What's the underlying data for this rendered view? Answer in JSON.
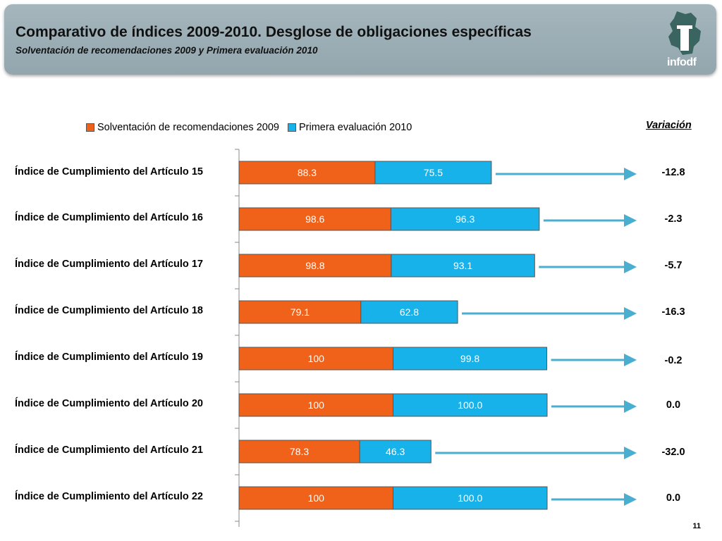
{
  "header": {
    "title": "Comparativo de índices 2009-2010. Desglose de obligaciones específicas",
    "subtitle": "Solventación de recomendaciones 2009 y Primera evaluación 2010",
    "logo_text": "infodf"
  },
  "colors": {
    "series_2009": "#f0621a",
    "series_2010": "#17b2ea",
    "arrow": "#4aaed0",
    "header_bg": "#9aadb4"
  },
  "variation_header": "Variación",
  "page_number": "11",
  "chart_data": {
    "type": "bar",
    "orientation": "horizontal",
    "stacked": true,
    "categories": [
      "Índice de Cumplimiento del Artículo 15",
      "Índice de Cumplimiento del Artículo 16",
      "Índice de Cumplimiento del Artículo 17",
      "Índice de Cumplimiento del Artículo 18",
      "Índice de Cumplimiento del Artículo 19",
      "Índice de Cumplimiento del Artículo 20",
      "Índice de Cumplimiento del Artículo 21",
      "Índice de Cumplimiento del Artículo 22"
    ],
    "series": [
      {
        "name": "Solventación de recomendaciones 2009",
        "values": [
          88.3,
          98.6,
          98.8,
          79.1,
          100,
          100,
          78.3,
          100
        ],
        "labels": [
          "88.3",
          "98.6",
          "98.8",
          "79.1",
          "100",
          "100",
          "78.3",
          "100"
        ]
      },
      {
        "name": "Primera evaluación 2010",
        "values": [
          75.5,
          96.3,
          93.1,
          62.8,
          99.8,
          100.0,
          46.3,
          100.0
        ],
        "labels": [
          "75.5",
          "96.3",
          "93.1",
          "62.8",
          "99.8",
          "100.0",
          "46.3",
          "100.0"
        ]
      }
    ],
    "variation": [
      "-12.8",
      "-2.3",
      "-5.7",
      "-16.3",
      "-0.2",
      "0.0",
      "-32.0",
      "0.0"
    ],
    "legend_position": "top",
    "grid": false
  }
}
